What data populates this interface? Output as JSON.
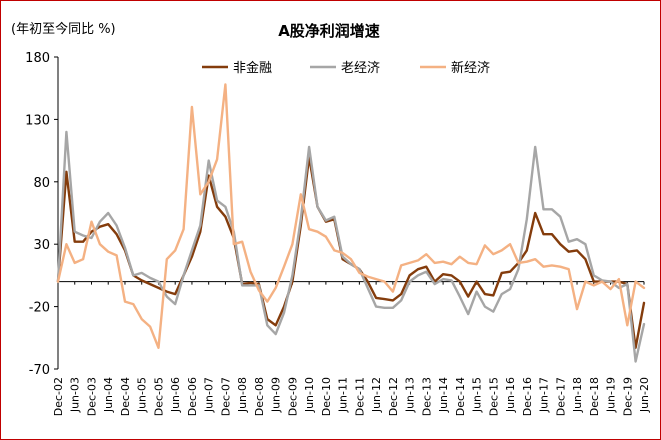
{
  "chart_data": {
    "type": "line",
    "title": "A股净利润增速",
    "ylabel": "(年初至今同比 %)",
    "xlabel": "",
    "ylim": [
      -70,
      180
    ],
    "yticks": [
      -70,
      -20,
      30,
      80,
      130,
      180
    ],
    "grid": false,
    "legend_position": "top",
    "x_start": "Dec-02",
    "x_end": "Jun-20",
    "x_step_months": 3,
    "x_tick_labels": [
      "Dec-02",
      "Jun-03",
      "Dec-03",
      "Jun-04",
      "Dec-04",
      "Jun-05",
      "Dec-05",
      "Jun-06",
      "Dec-06",
      "Jun-07",
      "Dec-07",
      "Jun-08",
      "Dec-08",
      "Jun-09",
      "Dec-09",
      "Jun-10",
      "Dec-10",
      "Jun-11",
      "Dec-11",
      "Jun-12",
      "Dec-12",
      "Jun-13",
      "Dec-13",
      "Jun-14",
      "Dec-14",
      "Jun-15",
      "Dec-15",
      "Jun-16",
      "Dec-16",
      "Jun-17",
      "Dec-17",
      "Jun-18",
      "Dec-18",
      "Jun-19",
      "Dec-19",
      "Jun-20"
    ],
    "series": [
      {
        "name": "非金融",
        "color": "#843c0c",
        "values": [
          0,
          88,
          32,
          32,
          40,
          44,
          46,
          38,
          25,
          5,
          1,
          -2,
          -5,
          -8,
          -10,
          5,
          20,
          40,
          85,
          60,
          52,
          35,
          -2,
          -1,
          -2,
          -30,
          -35,
          -20,
          0,
          45,
          100,
          60,
          48,
          50,
          18,
          14,
          10,
          0,
          -13,
          -14,
          -15,
          -10,
          5,
          10,
          12,
          0,
          6,
          5,
          0,
          -12,
          0,
          -10,
          -11,
          7,
          8,
          15,
          25,
          55,
          38,
          38,
          30,
          24,
          25,
          18,
          0,
          0,
          0,
          0,
          -2,
          -53,
          -17
        ]
      },
      {
        "name": "老经济",
        "color": "#a6a6a6",
        "values": [
          0,
          120,
          40,
          37,
          35,
          48,
          55,
          45,
          27,
          5,
          7,
          3,
          0,
          -12,
          -18,
          5,
          25,
          45,
          97,
          65,
          60,
          40,
          -3,
          -3,
          -3,
          -35,
          -42,
          -25,
          5,
          50,
          108,
          60,
          49,
          52,
          20,
          14,
          10,
          -5,
          -20,
          -21,
          -21,
          -15,
          0,
          5,
          8,
          -2,
          2,
          1,
          -12,
          -26,
          -8,
          -20,
          -24,
          -10,
          -6,
          10,
          50,
          108,
          58,
          58,
          52,
          32,
          34,
          30,
          5,
          1,
          0,
          -5,
          -2,
          -64,
          -34
        ]
      },
      {
        "name": "新经济",
        "color": "#f4b183",
        "values": [
          0,
          30,
          15,
          18,
          48,
          30,
          24,
          21,
          -16,
          -18,
          -30,
          -36,
          -53,
          18,
          25,
          42,
          140,
          70,
          80,
          98,
          158,
          30,
          32,
          8,
          -7,
          -16,
          -5,
          12,
          30,
          70,
          42,
          40,
          36,
          25,
          23,
          18,
          7,
          4,
          2,
          0,
          -8,
          13,
          15,
          17,
          22,
          15,
          16,
          14,
          20,
          15,
          14,
          29,
          22,
          25,
          30,
          15,
          16,
          18,
          12,
          13,
          12,
          10,
          -22,
          0,
          -3,
          0,
          -6,
          2,
          -35,
          0,
          -5
        ]
      }
    ]
  }
}
